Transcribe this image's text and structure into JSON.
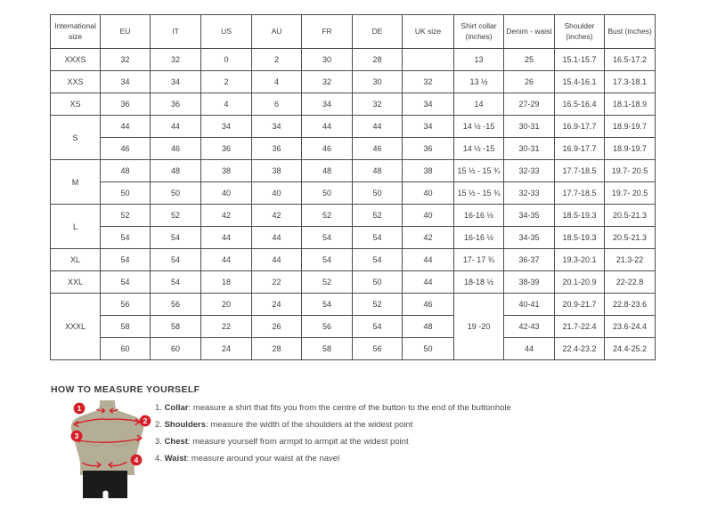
{
  "accent_color": "#d71f2a",
  "torso_color": "#b5ae97",
  "shorts_color": "#1b1b1b",
  "table": {
    "headers": [
      "International size",
      "EU",
      "IT",
      "US",
      "AU",
      "FR",
      "DE",
      "UK size",
      "Shirt collar (inches)",
      "Denim - waist",
      "Shoulder (inches)",
      "Bust (inches)"
    ],
    "rows": [
      {
        "cells": [
          {
            "t": "XXXS"
          },
          {
            "t": "32"
          },
          {
            "t": "32"
          },
          {
            "t": "0"
          },
          {
            "t": "2"
          },
          {
            "t": "30"
          },
          {
            "t": "28"
          },
          {
            "t": ""
          },
          {
            "t": "13"
          },
          {
            "t": "25"
          },
          {
            "t": "15.1-15.7"
          },
          {
            "t": "16.5-17.2"
          }
        ]
      },
      {
        "cells": [
          {
            "t": "XXS"
          },
          {
            "t": "34"
          },
          {
            "t": "34"
          },
          {
            "t": "2"
          },
          {
            "t": "4"
          },
          {
            "t": "32"
          },
          {
            "t": "30"
          },
          {
            "t": "32"
          },
          {
            "t": "13 ½"
          },
          {
            "t": "26"
          },
          {
            "t": "15.4-16.1"
          },
          {
            "t": "17.3-18.1"
          }
        ]
      },
      {
        "cells": [
          {
            "t": "XS"
          },
          {
            "t": "36"
          },
          {
            "t": "36"
          },
          {
            "t": "4"
          },
          {
            "t": "6"
          },
          {
            "t": "34"
          },
          {
            "t": "32"
          },
          {
            "t": "34"
          },
          {
            "t": "14"
          },
          {
            "t": "27-29"
          },
          {
            "t": "16.5-16.4"
          },
          {
            "t": "18.1-18.9"
          }
        ]
      },
      {
        "cells": [
          {
            "t": "S",
            "rs": 2
          },
          {
            "t": "44"
          },
          {
            "t": "44"
          },
          {
            "t": "34"
          },
          {
            "t": "34"
          },
          {
            "t": "44"
          },
          {
            "t": "44"
          },
          {
            "t": "34"
          },
          {
            "t": "14 ½ -15"
          },
          {
            "t": "30-31"
          },
          {
            "t": "16.9-17.7"
          },
          {
            "t": "18.9-19.7"
          }
        ]
      },
      {
        "cells": [
          {
            "t": "46"
          },
          {
            "t": "46"
          },
          {
            "t": "36"
          },
          {
            "t": "36"
          },
          {
            "t": "46"
          },
          {
            "t": "46"
          },
          {
            "t": "36"
          },
          {
            "t": "14 ½ -15"
          },
          {
            "t": "30-31"
          },
          {
            "t": "16.9-17.7"
          },
          {
            "t": "18.9-19.7"
          }
        ]
      },
      {
        "cells": [
          {
            "t": "M",
            "rs": 2
          },
          {
            "t": "48"
          },
          {
            "t": "48"
          },
          {
            "t": "38"
          },
          {
            "t": "38"
          },
          {
            "t": "48"
          },
          {
            "t": "48"
          },
          {
            "t": "38"
          },
          {
            "t": "15 ½ - 15 ¾"
          },
          {
            "t": "32-33"
          },
          {
            "t": "17.7-18.5"
          },
          {
            "t": "19.7- 20.5"
          }
        ]
      },
      {
        "cells": [
          {
            "t": "50"
          },
          {
            "t": "50"
          },
          {
            "t": "40"
          },
          {
            "t": "40"
          },
          {
            "t": "50"
          },
          {
            "t": "50"
          },
          {
            "t": "40"
          },
          {
            "t": "15 ½ - 15 ¾"
          },
          {
            "t": "32-33"
          },
          {
            "t": "17.7-18.5"
          },
          {
            "t": "19.7- 20.5"
          }
        ]
      },
      {
        "cells": [
          {
            "t": "L",
            "rs": 2
          },
          {
            "t": "52"
          },
          {
            "t": "52"
          },
          {
            "t": "42"
          },
          {
            "t": "42"
          },
          {
            "t": "52"
          },
          {
            "t": "52"
          },
          {
            "t": "40"
          },
          {
            "t": "16-16 ½"
          },
          {
            "t": "34-35"
          },
          {
            "t": "18.5-19.3"
          },
          {
            "t": "20.5-21.3"
          }
        ]
      },
      {
        "cells": [
          {
            "t": "54"
          },
          {
            "t": "54"
          },
          {
            "t": "44"
          },
          {
            "t": "44"
          },
          {
            "t": "54"
          },
          {
            "t": "54"
          },
          {
            "t": "42"
          },
          {
            "t": "16-16 ½"
          },
          {
            "t": "34-35"
          },
          {
            "t": "18.5-19.3"
          },
          {
            "t": "20.5-21.3"
          }
        ]
      },
      {
        "cells": [
          {
            "t": "XL"
          },
          {
            "t": "54"
          },
          {
            "t": "54"
          },
          {
            "t": "44"
          },
          {
            "t": "44"
          },
          {
            "t": "54"
          },
          {
            "t": "54"
          },
          {
            "t": "44"
          },
          {
            "t": "17- 17 ¾"
          },
          {
            "t": "36-37"
          },
          {
            "t": "19.3-20.1"
          },
          {
            "t": "21.3-22"
          }
        ]
      },
      {
        "cells": [
          {
            "t": "XXL"
          },
          {
            "t": "54"
          },
          {
            "t": "54"
          },
          {
            "t": "18"
          },
          {
            "t": "22"
          },
          {
            "t": "52"
          },
          {
            "t": "50"
          },
          {
            "t": "44"
          },
          {
            "t": "18-18 ½"
          },
          {
            "t": "38-39"
          },
          {
            "t": "20.1-20.9"
          },
          {
            "t": "22-22.8"
          }
        ]
      },
      {
        "cells": [
          {
            "t": "XXXL",
            "rs": 3
          },
          {
            "t": "56"
          },
          {
            "t": "56"
          },
          {
            "t": "20"
          },
          {
            "t": "24"
          },
          {
            "t": "54"
          },
          {
            "t": "52"
          },
          {
            "t": "46"
          },
          {
            "t": "19 -20",
            "rs": 3
          },
          {
            "t": "40-41"
          },
          {
            "t": "20.9-21.7"
          },
          {
            "t": "22.8-23.6"
          }
        ]
      },
      {
        "cells": [
          {
            "t": "58"
          },
          {
            "t": "58"
          },
          {
            "t": "22"
          },
          {
            "t": "26"
          },
          {
            "t": "56"
          },
          {
            "t": "54"
          },
          {
            "t": "48"
          },
          {
            "t": "42-43"
          },
          {
            "t": "21.7-22.4"
          },
          {
            "t": "23.6-24.4"
          }
        ]
      },
      {
        "cells": [
          {
            "t": "60"
          },
          {
            "t": "60"
          },
          {
            "t": "24"
          },
          {
            "t": "28"
          },
          {
            "t": "58"
          },
          {
            "t": "56"
          },
          {
            "t": "50"
          },
          {
            "t": "44"
          },
          {
            "t": "22.4-23.2"
          },
          {
            "t": "24.4-25.2"
          }
        ]
      }
    ]
  },
  "measure": {
    "title": "HOW TO MEASURE YOURSELF",
    "badges": [
      "1",
      "2",
      "3",
      "4"
    ],
    "items": [
      {
        "num": "1.",
        "label": "Collar",
        "text": "measure a shirt that fits you from the centre of the button to the end of the buttonhole"
      },
      {
        "num": "2.",
        "label": "Shoulders",
        "text": "measure the width of the shoulders at the widest point"
      },
      {
        "num": "3.",
        "label": "Chest",
        "text": "measure yourself from armpit to armpit at the widest point"
      },
      {
        "num": "4.",
        "label": "Waist",
        "text": "measure around your waist at the navel"
      }
    ]
  }
}
